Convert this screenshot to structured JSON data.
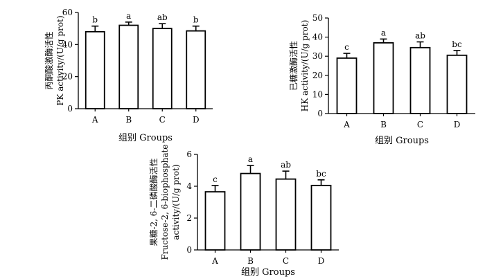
{
  "chart_data": [
    {
      "type": "bar",
      "categories": [
        "A",
        "B",
        "C",
        "D"
      ],
      "values": [
        48,
        52,
        50,
        48.5
      ],
      "errors": [
        3.5,
        2,
        3,
        3
      ],
      "letters": [
        "b",
        "a",
        "ab",
        "b"
      ],
      "xlabel": "组别 Groups",
      "ylabel_lines": [
        "丙酮酸激酶活性",
        "PK activity/(U/g prot)"
      ],
      "ylim": [
        0,
        60
      ],
      "yticks": [
        0,
        20,
        40,
        60
      ],
      "grid": false
    },
    {
      "type": "bar",
      "categories": [
        "A",
        "B",
        "C",
        "D"
      ],
      "values": [
        29,
        37,
        34.5,
        30.5
      ],
      "errors": [
        2.5,
        2,
        3,
        2.5
      ],
      "letters": [
        "c",
        "a",
        "ab",
        "bc"
      ],
      "xlabel": "组别 Groups",
      "ylabel_lines": [
        "已糖激酶活性",
        "HK activity/(U/g prot)"
      ],
      "ylim": [
        0,
        50
      ],
      "yticks": [
        0,
        10,
        20,
        30,
        40,
        50
      ],
      "grid": false
    },
    {
      "type": "bar",
      "categories": [
        "A",
        "B",
        "C",
        "D"
      ],
      "values": [
        3.65,
        4.8,
        4.45,
        4.05
      ],
      "errors": [
        0.4,
        0.5,
        0.5,
        0.35
      ],
      "letters": [
        "c",
        "a",
        "ab",
        "bc"
      ],
      "xlabel": "组别 Groups",
      "ylabel_lines": [
        "果糖-2, 6-二磷酸酶活性",
        "Fructose-2, 6-biophosphate",
        "activity/(U/g prot)"
      ],
      "ylim": [
        0,
        6
      ],
      "yticks": [
        0,
        2,
        4,
        6
      ],
      "grid": false
    }
  ]
}
